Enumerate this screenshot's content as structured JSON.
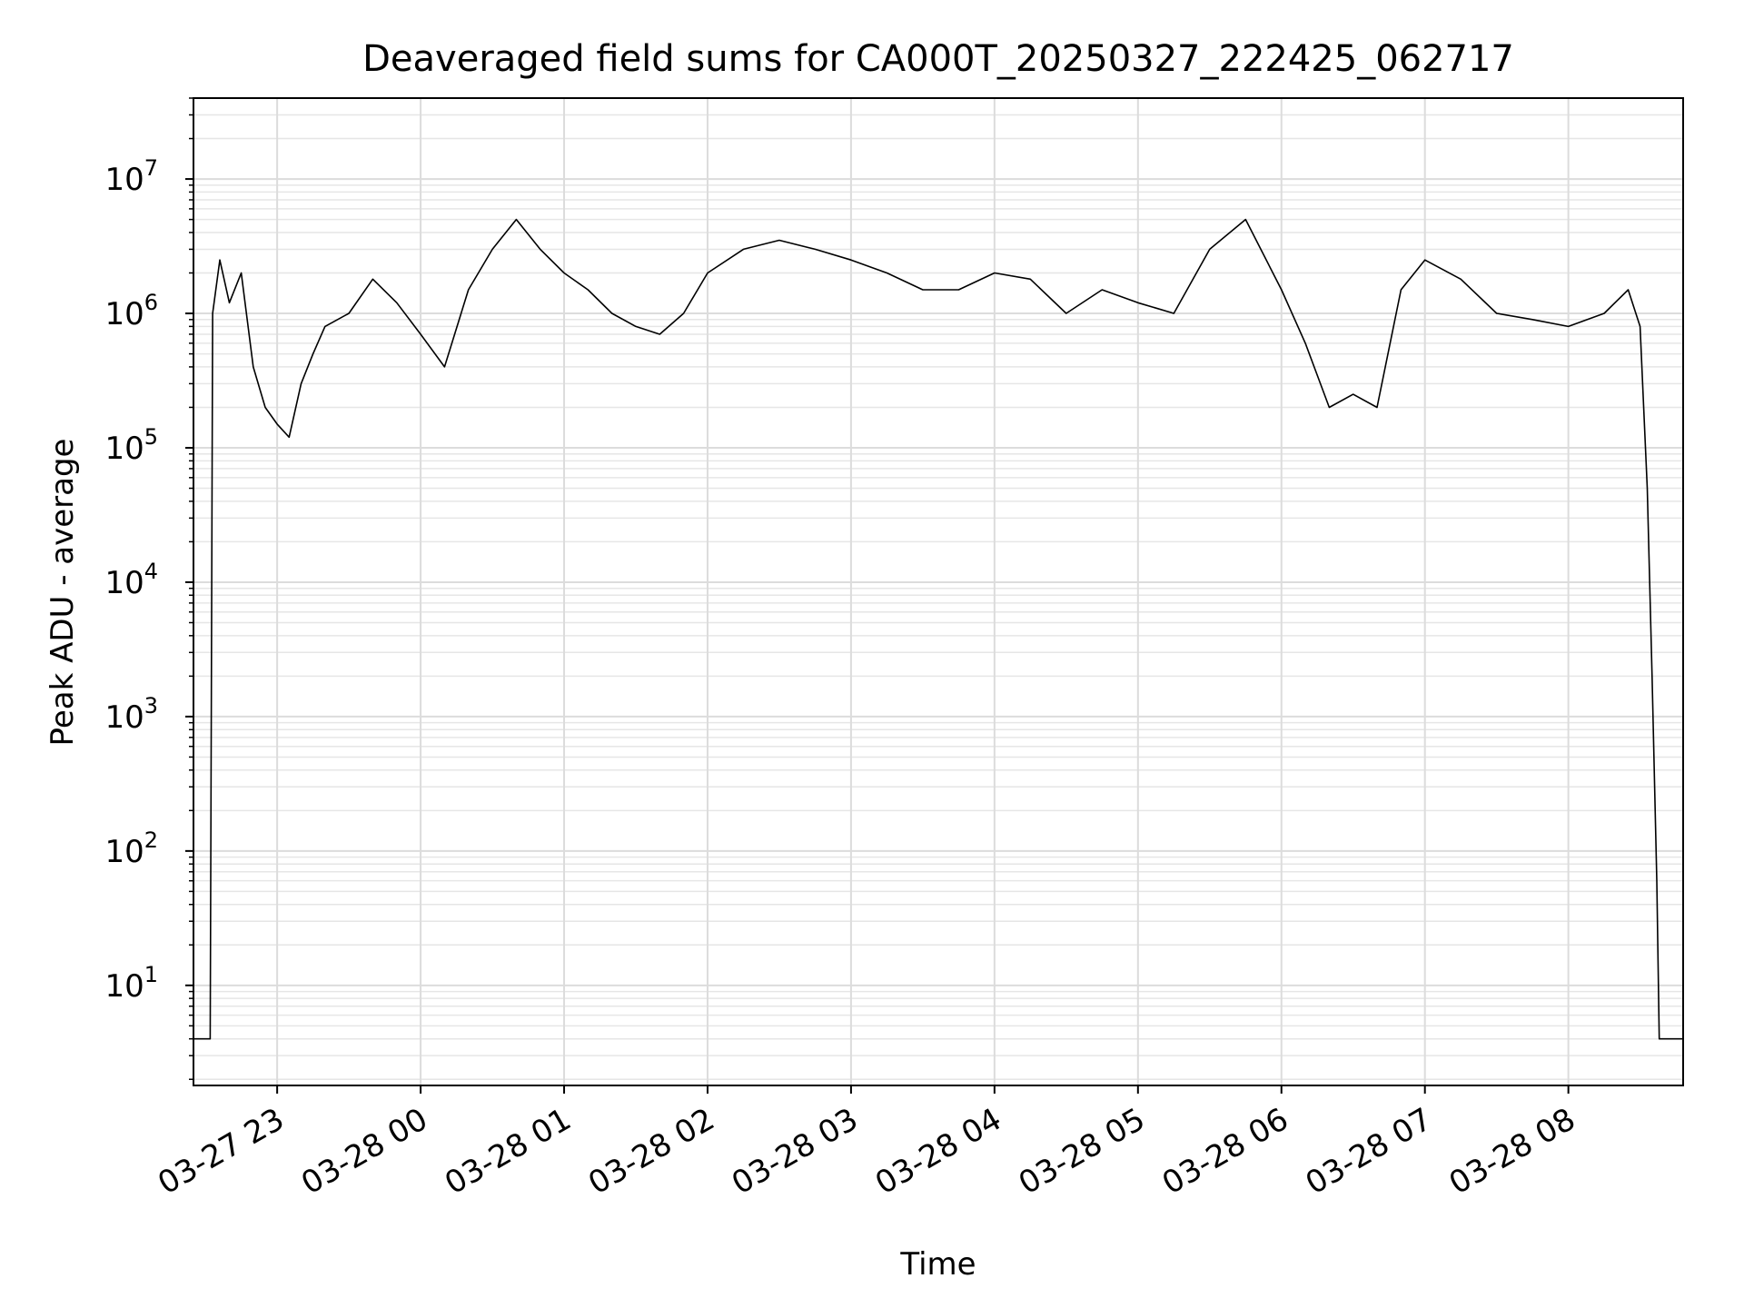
{
  "chart_data": {
    "type": "line",
    "title": "Deaveraged field sums for CA000T_20250327_222425_062717",
    "xlabel": "Time",
    "ylabel": "Peak ADU - average",
    "yscale": "log",
    "ylim": [
      1.8,
      40000000
    ],
    "xlim": [
      "2025-03-27 22:25",
      "2025-03-28 08:48"
    ],
    "grid": true,
    "x_ticks": [
      {
        "t": "2025-03-27 23:00",
        "label": "03-27 23"
      },
      {
        "t": "2025-03-28 00:00",
        "label": "03-28 00"
      },
      {
        "t": "2025-03-28 01:00",
        "label": "03-28 01"
      },
      {
        "t": "2025-03-28 02:00",
        "label": "03-28 02"
      },
      {
        "t": "2025-03-28 03:00",
        "label": "03-28 03"
      },
      {
        "t": "2025-03-28 04:00",
        "label": "03-28 04"
      },
      {
        "t": "2025-03-28 05:00",
        "label": "03-28 05"
      },
      {
        "t": "2025-03-28 06:00",
        "label": "03-28 06"
      },
      {
        "t": "2025-03-28 07:00",
        "label": "03-28 07"
      },
      {
        "t": "2025-03-28 08:00",
        "label": "03-28 08"
      }
    ],
    "y_ticks": [
      {
        "value": 10,
        "base": "10",
        "exp": "1"
      },
      {
        "value": 100,
        "base": "10",
        "exp": "2"
      },
      {
        "value": 1000,
        "base": "10",
        "exp": "3"
      },
      {
        "value": 10000,
        "base": "10",
        "exp": "4"
      },
      {
        "value": 100000,
        "base": "10",
        "exp": "5"
      },
      {
        "value": 1000000,
        "base": "10",
        "exp": "6"
      },
      {
        "value": 10000000,
        "base": "10",
        "exp": "7"
      }
    ],
    "series": [
      {
        "color": "#000000",
        "points": [
          [
            "2025-03-27 22:25",
            4
          ],
          [
            "2025-03-27 22:32",
            4
          ],
          [
            "2025-03-27 22:33",
            1000000
          ],
          [
            "2025-03-27 22:36",
            2500000
          ],
          [
            "2025-03-27 22:40",
            1200000
          ],
          [
            "2025-03-27 22:45",
            2000000
          ],
          [
            "2025-03-27 22:50",
            400000
          ],
          [
            "2025-03-27 22:55",
            200000
          ],
          [
            "2025-03-27 23:00",
            150000
          ],
          [
            "2025-03-27 23:05",
            120000
          ],
          [
            "2025-03-27 23:10",
            300000
          ],
          [
            "2025-03-27 23:15",
            500000
          ],
          [
            "2025-03-27 23:20",
            800000
          ],
          [
            "2025-03-27 23:30",
            1000000
          ],
          [
            "2025-03-27 23:40",
            1800000
          ],
          [
            "2025-03-27 23:50",
            1200000
          ],
          [
            "2025-03-28 00:00",
            700000
          ],
          [
            "2025-03-28 00:10",
            400000
          ],
          [
            "2025-03-28 00:20",
            1500000
          ],
          [
            "2025-03-28 00:30",
            3000000
          ],
          [
            "2025-03-28 00:40",
            5000000
          ],
          [
            "2025-03-28 00:50",
            3000000
          ],
          [
            "2025-03-28 01:00",
            2000000
          ],
          [
            "2025-03-28 01:10",
            1500000
          ],
          [
            "2025-03-28 01:20",
            1000000
          ],
          [
            "2025-03-28 01:30",
            800000
          ],
          [
            "2025-03-28 01:40",
            700000
          ],
          [
            "2025-03-28 01:50",
            1000000
          ],
          [
            "2025-03-28 02:00",
            2000000
          ],
          [
            "2025-03-28 02:15",
            3000000
          ],
          [
            "2025-03-28 02:30",
            3500000
          ],
          [
            "2025-03-28 02:45",
            3000000
          ],
          [
            "2025-03-28 03:00",
            2500000
          ],
          [
            "2025-03-28 03:15",
            2000000
          ],
          [
            "2025-03-28 03:30",
            1500000
          ],
          [
            "2025-03-28 03:45",
            1500000
          ],
          [
            "2025-03-28 04:00",
            2000000
          ],
          [
            "2025-03-28 04:15",
            1800000
          ],
          [
            "2025-03-28 04:30",
            1000000
          ],
          [
            "2025-03-28 04:45",
            1500000
          ],
          [
            "2025-03-28 05:00",
            1200000
          ],
          [
            "2025-03-28 05:15",
            1000000
          ],
          [
            "2025-03-28 05:30",
            3000000
          ],
          [
            "2025-03-28 05:45",
            5000000
          ],
          [
            "2025-03-28 06:00",
            1500000
          ],
          [
            "2025-03-28 06:10",
            600000
          ],
          [
            "2025-03-28 06:20",
            200000
          ],
          [
            "2025-03-28 06:30",
            250000
          ],
          [
            "2025-03-28 06:40",
            200000
          ],
          [
            "2025-03-28 06:50",
            1500000
          ],
          [
            "2025-03-28 07:00",
            2500000
          ],
          [
            "2025-03-28 07:15",
            1800000
          ],
          [
            "2025-03-28 07:30",
            1000000
          ],
          [
            "2025-03-28 07:45",
            900000
          ],
          [
            "2025-03-28 08:00",
            800000
          ],
          [
            "2025-03-28 08:15",
            1000000
          ],
          [
            "2025-03-28 08:25",
            1500000
          ],
          [
            "2025-03-28 08:30",
            800000
          ],
          [
            "2025-03-28 08:33",
            50000
          ],
          [
            "2025-03-28 08:35",
            2000
          ],
          [
            "2025-03-28 08:37",
            60
          ],
          [
            "2025-03-28 08:38",
            4
          ],
          [
            "2025-03-28 08:48",
            4
          ]
        ]
      }
    ]
  }
}
